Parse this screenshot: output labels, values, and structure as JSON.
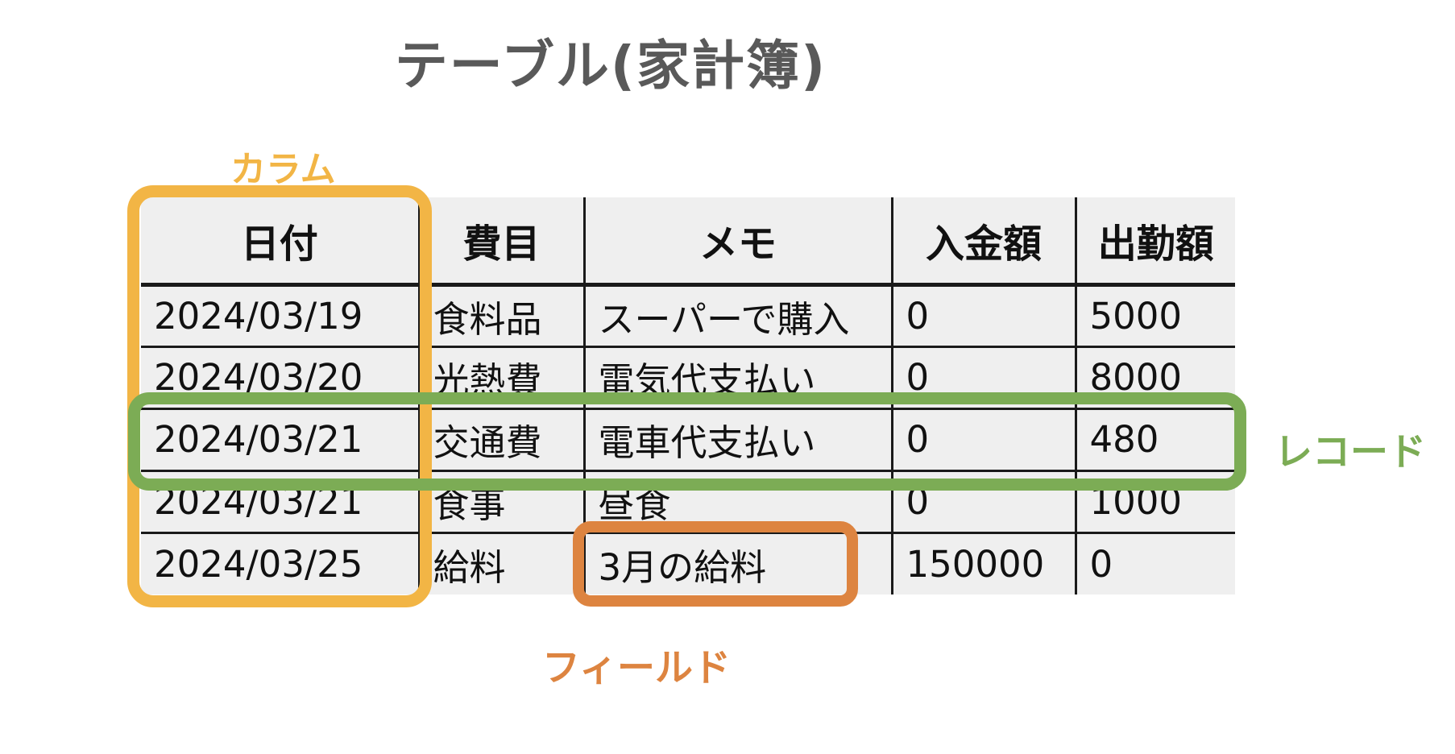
{
  "title": "テーブル(家計簿)",
  "annotations": {
    "column": {
      "label": "カラム",
      "color": "#F2B545"
    },
    "record": {
      "label": "レコード",
      "color": "#7CAC55"
    },
    "field": {
      "label": "フィールド",
      "color": "#DD8440"
    }
  },
  "table": {
    "columns": [
      "日付",
      "費目",
      "メモ",
      "入金額",
      "出勤額"
    ],
    "rows": [
      [
        "2024/03/19",
        "食料品",
        "スーパーで購入",
        "0",
        "5000"
      ],
      [
        "2024/03/20",
        "光熱費",
        "電気代支払い",
        "0",
        "8000"
      ],
      [
        "2024/03/21",
        "交通費",
        "電車代支払い",
        "0",
        "480"
      ],
      [
        "2024/03/21",
        "食事",
        "昼食",
        "0",
        "1000"
      ],
      [
        "2024/03/25",
        "給料",
        "3月の給料",
        "150000",
        "0"
      ]
    ],
    "highlighted_record_row_index": 2,
    "highlighted_field_cell": {
      "row_index": 4,
      "column": "メモ",
      "value": "3月の給料"
    },
    "highlighted_column": "日付"
  },
  "colors": {
    "title_text": "#595959",
    "table_background": "#efefef",
    "grid_lines": "#1a1a1a",
    "page_background": "#ffffff"
  }
}
